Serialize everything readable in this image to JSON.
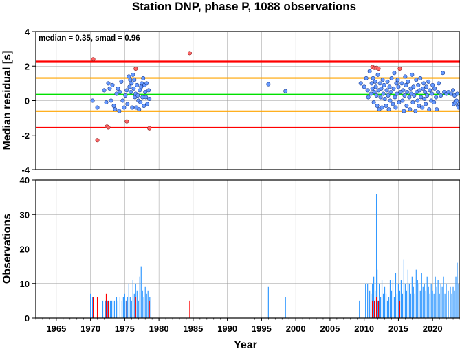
{
  "title": "Station DNP, phase P, 1088 observations",
  "chart_data": [
    {
      "type": "scatter",
      "ylabel": "Median residual [s]",
      "xlim": [
        1962,
        2024
      ],
      "ylim": [
        -4,
        4
      ],
      "yticks": [
        -4,
        -2,
        0,
        2,
        4
      ],
      "grid": true,
      "annotation": "median = 0.35, smad = 0.96",
      "hlines": [
        {
          "y": 2.27,
          "color": "#ff0000"
        },
        {
          "y": 1.31,
          "color": "#ffa500"
        },
        {
          "y": 0.35,
          "color": "#00e000"
        },
        {
          "y": -0.61,
          "color": "#ffa500"
        },
        {
          "y": -1.57,
          "color": "#ff0000"
        }
      ],
      "colors": {
        "normal": "#6699ff",
        "outlier": "#ff6666"
      },
      "points_normal": [
        [
          1970.3,
          0.0
        ],
        [
          1971.0,
          -0.4
        ],
        [
          1972.0,
          0.6
        ],
        [
          1972.3,
          -0.1
        ],
        [
          1972.6,
          1.0
        ],
        [
          1972.8,
          0.7
        ],
        [
          1973.0,
          0.0
        ],
        [
          1973.2,
          0.9
        ],
        [
          1973.4,
          -0.3
        ],
        [
          1973.6,
          -0.5
        ],
        [
          1973.8,
          0.4
        ],
        [
          1974.0,
          0.7
        ],
        [
          1974.2,
          -0.6
        ],
        [
          1974.3,
          0.5
        ],
        [
          1974.5,
          1.1
        ],
        [
          1974.7,
          0.0
        ],
        [
          1974.9,
          -0.4
        ],
        [
          1975.1,
          0.3
        ],
        [
          1975.3,
          0.6
        ],
        [
          1975.4,
          -0.2
        ],
        [
          1975.6,
          1.4
        ],
        [
          1975.7,
          0.8
        ],
        [
          1975.8,
          1.2
        ],
        [
          1975.9,
          0.5
        ],
        [
          1976.0,
          1.0
        ],
        [
          1976.1,
          -0.4
        ],
        [
          1976.2,
          1.5
        ],
        [
          1976.3,
          0.7
        ],
        [
          1976.4,
          1.2
        ],
        [
          1976.5,
          0.2
        ],
        [
          1976.6,
          0.4
        ],
        [
          1976.7,
          -0.4
        ],
        [
          1976.8,
          0.9
        ],
        [
          1976.9,
          0.3
        ],
        [
          1977.0,
          0.0
        ],
        [
          1977.1,
          -0.5
        ],
        [
          1977.2,
          0.6
        ],
        [
          1977.3,
          -0.1
        ],
        [
          1977.4,
          0.8
        ],
        [
          1977.5,
          1.0
        ],
        [
          1977.6,
          0.2
        ],
        [
          1977.7,
          1.3
        ],
        [
          1977.8,
          -0.3
        ],
        [
          1977.9,
          0.9
        ],
        [
          1978.0,
          0.5
        ],
        [
          1978.1,
          0.2
        ],
        [
          1978.2,
          1.0
        ],
        [
          1978.3,
          -0.2
        ],
        [
          1978.5,
          0.6
        ],
        [
          1978.6,
          0.1
        ],
        [
          1996.0,
          0.95
        ],
        [
          1998.5,
          0.55
        ],
        [
          2009.5,
          1.0
        ],
        [
          2010.0,
          0.8
        ],
        [
          2010.3,
          1.3
        ],
        [
          2010.5,
          0.6
        ],
        [
          2010.6,
          0.2
        ],
        [
          2010.8,
          1.7
        ],
        [
          2011.0,
          0.4
        ],
        [
          2011.1,
          1.0
        ],
        [
          2011.2,
          0.7
        ],
        [
          2011.3,
          1.3
        ],
        [
          2011.4,
          -0.1
        ],
        [
          2011.5,
          0.5
        ],
        [
          2011.6,
          1.1
        ],
        [
          2011.7,
          0.8
        ],
        [
          2011.8,
          0.3
        ],
        [
          2011.9,
          -0.3
        ],
        [
          2012.0,
          1.5
        ],
        [
          2012.1,
          0.6
        ],
        [
          2012.2,
          -0.5
        ],
        [
          2012.3,
          1.0
        ],
        [
          2012.4,
          0.2
        ],
        [
          2012.5,
          0.7
        ],
        [
          2012.6,
          -0.4
        ],
        [
          2012.7,
          1.2
        ],
        [
          2012.8,
          0.4
        ],
        [
          2012.9,
          0.9
        ],
        [
          2013.0,
          0.1
        ],
        [
          2013.2,
          -0.3
        ],
        [
          2013.3,
          0.6
        ],
        [
          2013.4,
          1.1
        ],
        [
          2013.5,
          0.3
        ],
        [
          2013.6,
          -0.5
        ],
        [
          2013.7,
          0.8
        ],
        [
          2013.8,
          0.0
        ],
        [
          2013.9,
          0.5
        ],
        [
          2014.0,
          1.3
        ],
        [
          2014.2,
          -0.2
        ],
        [
          2014.3,
          0.7
        ],
        [
          2014.4,
          1.6
        ],
        [
          2014.5,
          0.2
        ],
        [
          2014.6,
          -0.4
        ],
        [
          2014.7,
          1.0
        ],
        [
          2014.8,
          0.4
        ],
        [
          2014.9,
          1.2
        ],
        [
          2015.0,
          0.8
        ],
        [
          2015.1,
          -0.1
        ],
        [
          2015.3,
          0.5
        ],
        [
          2015.5,
          1.0
        ],
        [
          2015.6,
          0.0
        ],
        [
          2015.7,
          0.6
        ],
        [
          2015.8,
          -0.6
        ],
        [
          2015.9,
          0.3
        ],
        [
          2016.0,
          1.4
        ],
        [
          2016.1,
          0.9
        ],
        [
          2016.2,
          -0.3
        ],
        [
          2016.3,
          0.5
        ],
        [
          2016.4,
          1.1
        ],
        [
          2016.6,
          0.2
        ],
        [
          2016.7,
          -0.5
        ],
        [
          2016.8,
          0.7
        ],
        [
          2016.9,
          0.4
        ],
        [
          2017.0,
          1.5
        ],
        [
          2017.1,
          -0.1
        ],
        [
          2017.2,
          0.8
        ],
        [
          2017.3,
          0.3
        ],
        [
          2017.5,
          -0.6
        ],
        [
          2017.6,
          1.2
        ],
        [
          2017.7,
          0.5
        ],
        [
          2017.8,
          0.0
        ],
        [
          2017.9,
          0.9
        ],
        [
          2018.0,
          -0.3
        ],
        [
          2018.1,
          0.6
        ],
        [
          2018.2,
          1.3
        ],
        [
          2018.3,
          0.2
        ],
        [
          2018.5,
          -0.4
        ],
        [
          2018.6,
          0.7
        ],
        [
          2018.7,
          1.0
        ],
        [
          2018.8,
          0.1
        ],
        [
          2018.9,
          0.5
        ],
        [
          2019.0,
          -0.2
        ],
        [
          2019.1,
          0.8
        ],
        [
          2019.2,
          0.3
        ],
        [
          2019.4,
          1.1
        ],
        [
          2019.5,
          -0.5
        ],
        [
          2019.6,
          0.6
        ],
        [
          2019.8,
          0.0
        ],
        [
          2019.9,
          0.4
        ],
        [
          2020.0,
          0.9
        ],
        [
          2020.2,
          -0.1
        ],
        [
          2020.3,
          0.7
        ],
        [
          2020.5,
          0.2
        ],
        [
          2020.6,
          -0.5
        ],
        [
          2020.8,
          0.5
        ],
        [
          2020.9,
          1.0
        ],
        [
          2021.2,
          0.3
        ],
        [
          2021.5,
          1.6
        ],
        [
          2021.7,
          0.5
        ],
        [
          2022.0,
          0.4
        ],
        [
          2022.3,
          0.5
        ],
        [
          2022.7,
          0.4
        ],
        [
          2023.0,
          0.6
        ],
        [
          2023.1,
          -0.2
        ],
        [
          2023.2,
          0.3
        ],
        [
          2023.3,
          -0.1
        ],
        [
          2023.5,
          0.0
        ],
        [
          2023.6,
          0.4
        ],
        [
          2023.7,
          -0.3
        ],
        [
          2023.8,
          -0.4
        ],
        [
          2023.9,
          -0.2
        ]
      ],
      "points_outlier": [
        [
          1970.4,
          2.4
        ],
        [
          1971.0,
          -2.3
        ],
        [
          1972.4,
          -1.5
        ],
        [
          1972.6,
          -1.55
        ],
        [
          1975.3,
          -1.2
        ],
        [
          1976.6,
          1.85
        ],
        [
          1978.6,
          -1.6
        ],
        [
          1984.5,
          2.75
        ],
        [
          2011.2,
          1.95
        ],
        [
          2011.5,
          1.9
        ],
        [
          2011.8,
          1.9
        ],
        [
          2012.1,
          1.85
        ],
        [
          2015.2,
          1.85
        ]
      ]
    },
    {
      "type": "bar",
      "xlabel": "Year",
      "ylabel": "Observations",
      "xlim": [
        1962,
        2024
      ],
      "ylim": [
        0,
        40
      ],
      "xticks": [
        1965,
        1970,
        1975,
        1980,
        1985,
        1990,
        1995,
        2000,
        2005,
        2010,
        2015,
        2020
      ],
      "yticks": [
        0,
        10,
        20,
        30,
        40
      ],
      "grid": true,
      "colors": {
        "normal": "#3399ff",
        "outlier": "#ff0000"
      },
      "bars_normal": [
        [
          1970.0,
          7
        ],
        [
          1970.3,
          6
        ],
        [
          1971.8,
          5
        ],
        [
          1972.2,
          5
        ],
        [
          1972.5,
          5
        ],
        [
          1972.9,
          5
        ],
        [
          1973.1,
          5
        ],
        [
          1973.3,
          5
        ],
        [
          1973.5,
          5
        ],
        [
          1973.8,
          6
        ],
        [
          1974.0,
          5
        ],
        [
          1974.3,
          6
        ],
        [
          1974.6,
          5
        ],
        [
          1974.8,
          6
        ],
        [
          1975.0,
          7
        ],
        [
          1975.2,
          5
        ],
        [
          1975.4,
          6
        ],
        [
          1975.6,
          10
        ],
        [
          1975.8,
          6
        ],
        [
          1976.0,
          5
        ],
        [
          1976.2,
          11
        ],
        [
          1976.4,
          7
        ],
        [
          1976.6,
          10
        ],
        [
          1976.8,
          8
        ],
        [
          1977.0,
          5
        ],
        [
          1977.2,
          12
        ],
        [
          1977.4,
          15
        ],
        [
          1977.6,
          8
        ],
        [
          1977.8,
          6
        ],
        [
          1978.0,
          9
        ],
        [
          1978.2,
          7
        ],
        [
          1978.4,
          8
        ],
        [
          1978.6,
          6
        ],
        [
          1978.8,
          6
        ],
        [
          1996.0,
          9
        ],
        [
          1998.5,
          6
        ],
        [
          2009.3,
          5
        ],
        [
          2010.2,
          10
        ],
        [
          2010.5,
          10
        ],
        [
          2010.8,
          8
        ],
        [
          2011.0,
          7
        ],
        [
          2011.2,
          10
        ],
        [
          2011.4,
          12
        ],
        [
          2011.6,
          8
        ],
        [
          2011.8,
          36
        ],
        [
          2011.9,
          14
        ],
        [
          2012.0,
          5
        ],
        [
          2012.2,
          10
        ],
        [
          2012.4,
          6
        ],
        [
          2012.6,
          11
        ],
        [
          2012.8,
          7
        ],
        [
          2013.0,
          9
        ],
        [
          2013.2,
          7
        ],
        [
          2013.4,
          5
        ],
        [
          2013.6,
          6
        ],
        [
          2013.8,
          11
        ],
        [
          2014.0,
          8
        ],
        [
          2014.2,
          11
        ],
        [
          2014.4,
          6
        ],
        [
          2014.6,
          13
        ],
        [
          2014.8,
          7
        ],
        [
          2015.0,
          10
        ],
        [
          2015.2,
          8
        ],
        [
          2015.4,
          11
        ],
        [
          2015.6,
          7
        ],
        [
          2015.8,
          17
        ],
        [
          2016.0,
          10
        ],
        [
          2016.2,
          8
        ],
        [
          2016.4,
          14
        ],
        [
          2016.6,
          10
        ],
        [
          2016.8,
          7
        ],
        [
          2017.0,
          12
        ],
        [
          2017.2,
          9
        ],
        [
          2017.4,
          7
        ],
        [
          2017.6,
          14
        ],
        [
          2017.8,
          11
        ],
        [
          2018.0,
          10
        ],
        [
          2018.2,
          8
        ],
        [
          2018.4,
          13
        ],
        [
          2018.6,
          9
        ],
        [
          2018.8,
          10
        ],
        [
          2019.0,
          8
        ],
        [
          2019.2,
          12
        ],
        [
          2019.4,
          9
        ],
        [
          2019.6,
          7
        ],
        [
          2019.8,
          10
        ],
        [
          2020.0,
          8
        ],
        [
          2020.2,
          7
        ],
        [
          2020.4,
          12
        ],
        [
          2020.6,
          9
        ],
        [
          2020.8,
          11
        ],
        [
          2021.0,
          7
        ],
        [
          2021.2,
          10
        ],
        [
          2021.4,
          9
        ],
        [
          2021.6,
          12
        ],
        [
          2021.8,
          7
        ],
        [
          2022.0,
          10
        ],
        [
          2022.3,
          8
        ],
        [
          2022.6,
          9
        ],
        [
          2022.8,
          7
        ],
        [
          2023.0,
          9
        ],
        [
          2023.2,
          8
        ],
        [
          2023.4,
          12
        ],
        [
          2023.6,
          16
        ],
        [
          2023.8,
          10
        ]
      ],
      "bars_outlier": [
        [
          1970.4,
          6
        ],
        [
          1971.0,
          6
        ],
        [
          1972.3,
          7
        ],
        [
          1972.6,
          5
        ],
        [
          1975.3,
          5
        ],
        [
          1976.6,
          6
        ],
        [
          1978.6,
          5
        ],
        [
          1984.5,
          5
        ],
        [
          2011.2,
          5
        ],
        [
          2011.5,
          5
        ],
        [
          2011.8,
          6
        ],
        [
          2012.1,
          5
        ],
        [
          2015.2,
          5
        ]
      ]
    }
  ]
}
